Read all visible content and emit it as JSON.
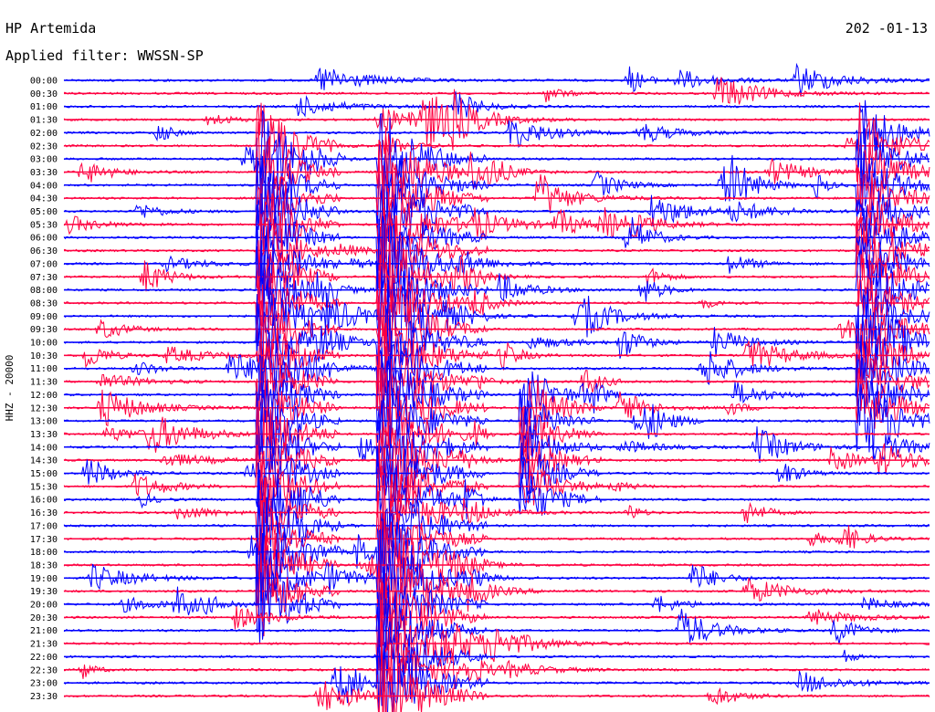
{
  "header": {
    "station": "HP Artemida",
    "filter_label": "Applied filter: WWSSN-SP",
    "date": "202 -01-13",
    "channel_label": "HHZ - 20000"
  },
  "colors": {
    "trace_a": "#0000ff",
    "trace_b": "#ff0040",
    "background": "#ffffff",
    "text": "#000000"
  },
  "chart_data": {
    "type": "line",
    "title": "HP Artemida",
    "subtitle": "Applied filter: WWSSN-SP",
    "ylabel": "HHZ - 20000",
    "row_labels": [
      "00:00",
      "00:30",
      "01:00",
      "01:30",
      "02:00",
      "02:30",
      "03:00",
      "03:30",
      "04:00",
      "04:30",
      "05:00",
      "05:30",
      "06:00",
      "06:30",
      "07:00",
      "07:30",
      "08:00",
      "08:30",
      "09:00",
      "09:30",
      "10:00",
      "10:30",
      "11:00",
      "11:30",
      "12:00",
      "12:30",
      "13:00",
      "13:30",
      "14:00",
      "14:30",
      "15:00",
      "15:30",
      "16:00",
      "16:30",
      "17:00",
      "17:30",
      "18:00",
      "18:30",
      "19:00",
      "19:30",
      "20:00",
      "20:30",
      "21:00",
      "21:30",
      "22:00",
      "22:30",
      "23:00",
      "23:30"
    ],
    "row_color_pattern": [
      "trace_a",
      "trace_b"
    ],
    "grid": false,
    "legend": "none"
  }
}
